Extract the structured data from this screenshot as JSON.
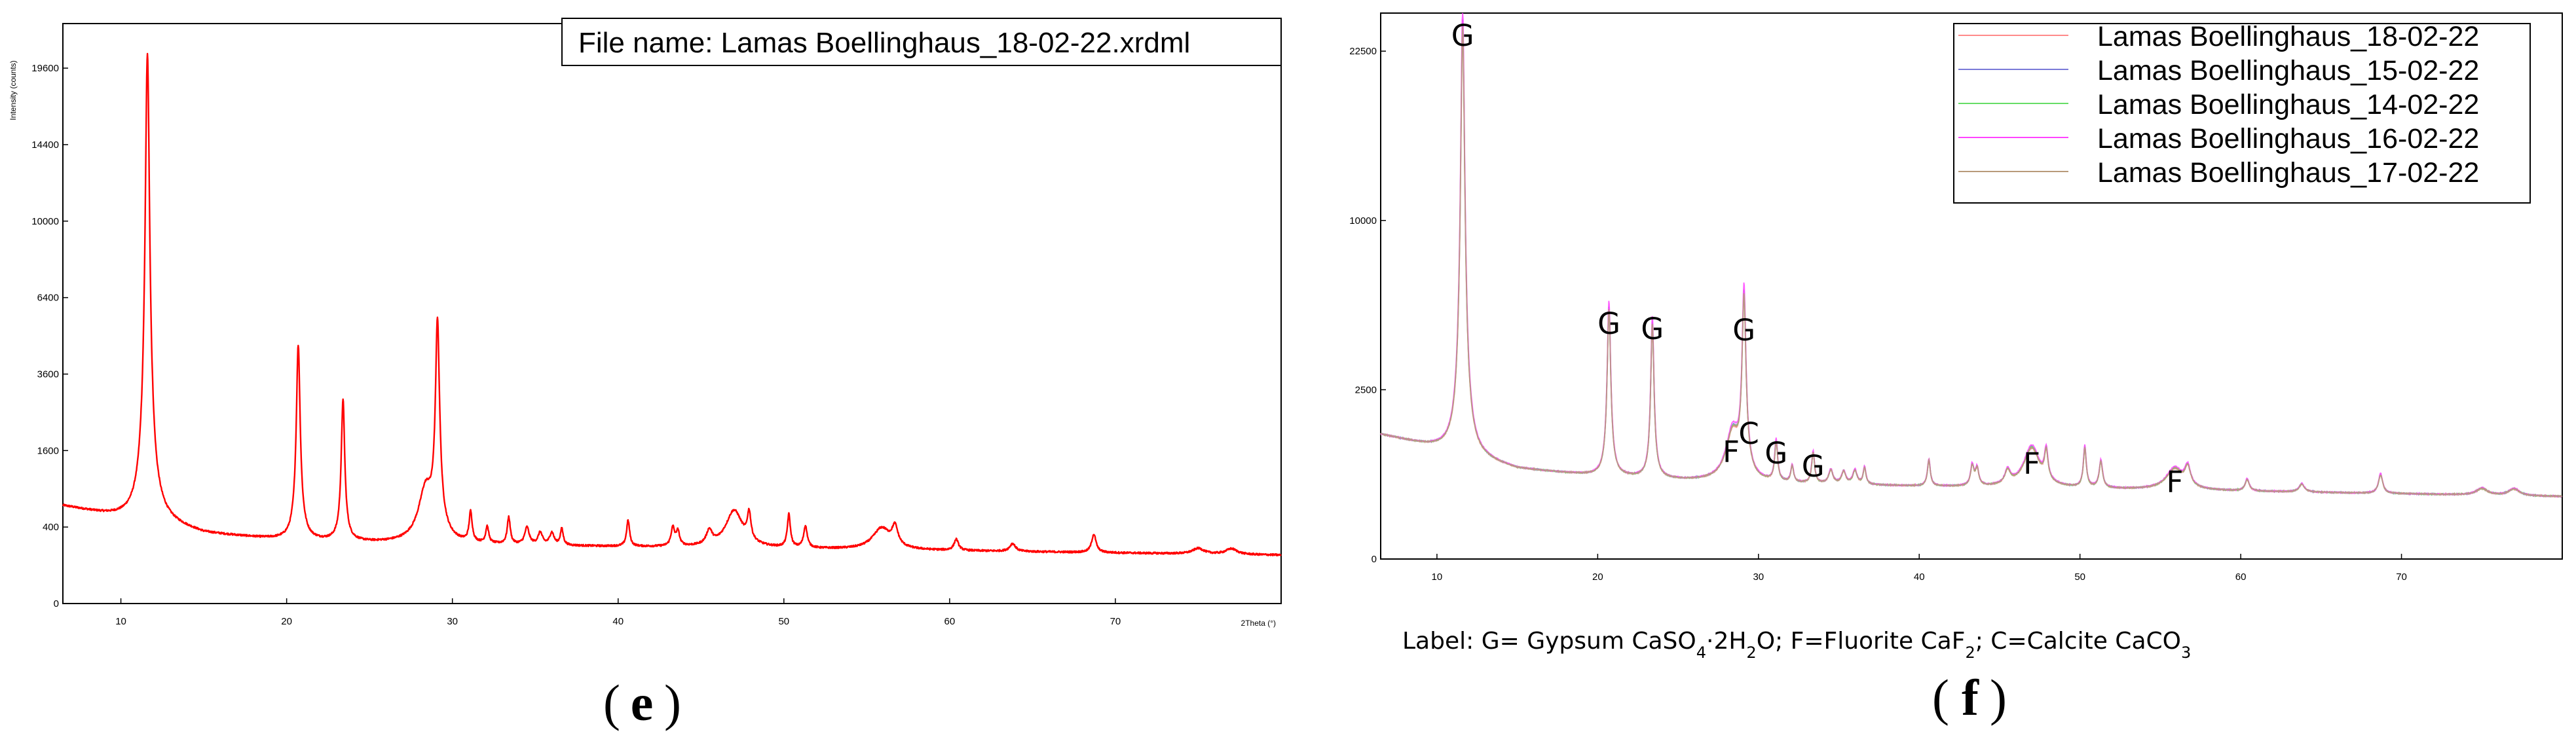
{
  "panels": {
    "e": {
      "letter": "e"
    },
    "f": {
      "letter": "f"
    }
  },
  "chart_data": [
    {
      "id": "e",
      "type": "line",
      "title": "File name: Lamas Boellinghaus_18-02-22.xrdml",
      "xlabel": "2Theta (°)",
      "ylabel": "Intensity (counts)",
      "xlim": [
        6.5,
        80
      ],
      "ylim": [
        0,
        23000
      ],
      "x_ticks": [
        10,
        20,
        30,
        40,
        50,
        60,
        70
      ],
      "y_ticks": [
        0,
        400,
        1600,
        3600,
        6400,
        10000,
        14400,
        19600
      ],
      "y_scale": "sqrt",
      "grid": false,
      "series": [
        {
          "color": "#ff0000",
          "baseline": [
            [
              6.5,
              650
            ],
            [
              9,
              540
            ],
            [
              11,
              460
            ],
            [
              12.5,
              430
            ],
            [
              15,
              330
            ],
            [
              20,
              270
            ],
            [
              25,
              250
            ],
            [
              30,
              235
            ],
            [
              40,
              220
            ],
            [
              50,
              205
            ],
            [
              60,
              190
            ],
            [
              70,
              175
            ],
            [
              80,
              160
            ]
          ],
          "peaks": [
            [
              11.6,
              20200,
              0.13
            ],
            [
              20.7,
              4300,
              0.11
            ],
            [
              23.4,
              2600,
              0.1
            ],
            [
              28.4,
              650,
              0.45
            ],
            [
              29.1,
              5200,
              0.12
            ],
            [
              31.1,
              320,
              0.1
            ],
            [
              32.1,
              160,
              0.1
            ],
            [
              33.4,
              270,
              0.1
            ],
            [
              34.5,
              160,
              0.15
            ],
            [
              35.3,
              110,
              0.15
            ],
            [
              36.0,
              110,
              0.15
            ],
            [
              36.6,
              150,
              0.1
            ],
            [
              40.6,
              250,
              0.1
            ],
            [
              43.3,
              170,
              0.12
            ],
            [
              43.6,
              130,
              0.12
            ],
            [
              45.5,
              130,
              0.2
            ],
            [
              47.0,
              380,
              0.55
            ],
            [
              47.9,
              300,
              0.12
            ],
            [
              50.3,
              330,
              0.1
            ],
            [
              51.3,
              200,
              0.12
            ],
            [
              55.9,
              190,
              0.6
            ],
            [
              56.7,
              180,
              0.2
            ],
            [
              60.4,
              90,
              0.15
            ],
            [
              63.8,
              60,
              0.2
            ],
            [
              68.7,
              150,
              0.15
            ],
            [
              75.0,
              40,
              0.4
            ],
            [
              77.0,
              40,
              0.4
            ]
          ]
        }
      ]
    },
    {
      "id": "f",
      "type": "line",
      "xlim": [
        6.5,
        80
      ],
      "ylim": [
        0,
        26000
      ],
      "x_ticks": [
        10,
        20,
        30,
        40,
        50,
        60,
        70
      ],
      "y_ticks": [
        0,
        2500,
        10000,
        22500
      ],
      "y_scale": "sqrt",
      "grid": false,
      "legend_position": "top-right",
      "series": [
        {
          "name": "Lamas Boellinghaus_18-02-22",
          "color": "#ff8a8a",
          "scale": 0.95
        },
        {
          "name": "Lamas Boellinghaus_15-02-22",
          "color": "#7a7ad8",
          "scale": 1.0
        },
        {
          "name": "Lamas Boellinghaus_14-02-22",
          "color": "#66dd66",
          "scale": 0.98
        },
        {
          "name": "Lamas Boellinghaus_16-02-22",
          "color": "#ff44ff",
          "scale": 1.05
        },
        {
          "name": "Lamas Boellinghaus_17-02-22",
          "color": "#b89a7a",
          "scale": 0.97
        }
      ],
      "common_baseline": [
        [
          6.5,
          1350
        ],
        [
          9,
          1150
        ],
        [
          11,
          1000
        ],
        [
          12.5,
          860
        ],
        [
          15,
          700
        ],
        [
          20,
          600
        ],
        [
          25,
          540
        ],
        [
          30,
          500
        ],
        [
          40,
          460
        ],
        [
          50,
          430
        ],
        [
          60,
          400
        ],
        [
          70,
          370
        ],
        [
          80,
          340
        ]
      ],
      "common_peaks": [
        [
          11.6,
          24500,
          0.13
        ],
        [
          20.7,
          5000,
          0.11
        ],
        [
          23.4,
          4400,
          0.1
        ],
        [
          28.4,
          900,
          0.45
        ],
        [
          29.1,
          5600,
          0.12
        ],
        [
          31.1,
          700,
          0.1
        ],
        [
          32.1,
          250,
          0.1
        ],
        [
          33.4,
          500,
          0.1
        ],
        [
          34.5,
          200,
          0.15
        ],
        [
          35.3,
          180,
          0.15
        ],
        [
          36.0,
          200,
          0.15
        ],
        [
          36.6,
          250,
          0.1
        ],
        [
          40.6,
          400,
          0.1
        ],
        [
          43.3,
          300,
          0.12
        ],
        [
          43.6,
          250,
          0.12
        ],
        [
          45.5,
          200,
          0.2
        ],
        [
          47.0,
          650,
          0.55
        ],
        [
          47.9,
          500,
          0.12
        ],
        [
          50.3,
          650,
          0.1
        ],
        [
          51.3,
          400,
          0.12
        ],
        [
          55.9,
          300,
          0.6
        ],
        [
          56.7,
          280,
          0.2
        ],
        [
          60.4,
          150,
          0.15
        ],
        [
          63.8,
          100,
          0.2
        ],
        [
          68.7,
          250,
          0.15
        ],
        [
          75.0,
          80,
          0.4
        ],
        [
          77.0,
          80,
          0.4
        ]
      ],
      "peak_labels": [
        {
          "text": "G",
          "x": 11.6
        },
        {
          "text": "G",
          "x": 20.7
        },
        {
          "text": "G",
          "x": 23.4
        },
        {
          "text": "F",
          "x": 28.3
        },
        {
          "text": "C",
          "x": 29.4
        },
        {
          "text": "G",
          "x": 29.1
        },
        {
          "text": "G",
          "x": 31.1
        },
        {
          "text": "G",
          "x": 33.4
        },
        {
          "text": "F",
          "x": 47.0
        },
        {
          "text": "F",
          "x": 55.9
        }
      ]
    }
  ],
  "caption": {
    "parts": [
      {
        "text": "Label: G= Gypsum CaSO"
      },
      {
        "text": "4",
        "sub": true
      },
      {
        "text": "·2H"
      },
      {
        "text": "2",
        "sub": true
      },
      {
        "text": "O;  F=Fluorite CaF"
      },
      {
        "text": "2",
        "sub": true
      },
      {
        "text": "; C=Calcite CaCO"
      },
      {
        "text": "3",
        "sub": true
      }
    ]
  }
}
